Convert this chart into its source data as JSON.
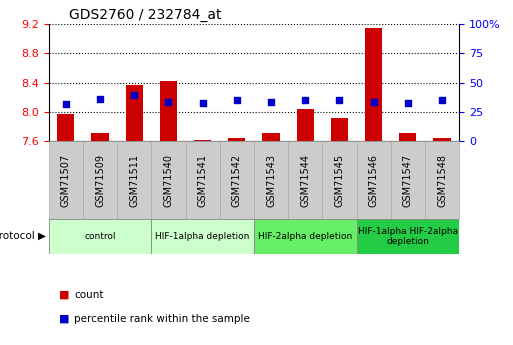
{
  "title": "GDS2760 / 232784_at",
  "samples": [
    "GSM71507",
    "GSM71509",
    "GSM71511",
    "GSM71540",
    "GSM71541",
    "GSM71542",
    "GSM71543",
    "GSM71544",
    "GSM71545",
    "GSM71546",
    "GSM71547",
    "GSM71548"
  ],
  "red_values": [
    7.97,
    7.72,
    8.37,
    8.43,
    7.62,
    7.65,
    7.72,
    8.04,
    7.92,
    9.15,
    7.72,
    7.65
  ],
  "blue_values_pct": [
    32,
    36,
    40,
    34,
    33,
    35,
    34,
    35,
    35,
    34,
    33,
    35
  ],
  "ylim_left": [
    7.6,
    9.2
  ],
  "ylim_right": [
    0,
    100
  ],
  "yticks_left": [
    7.6,
    8.0,
    8.4,
    8.8,
    9.2
  ],
  "yticks_right": [
    0,
    25,
    50,
    75,
    100
  ],
  "ytick_labels_right": [
    "0",
    "25",
    "50",
    "75",
    "100%"
  ],
  "groups": [
    {
      "label": "control",
      "start": 0,
      "end": 2,
      "color": "#ccffcc"
    },
    {
      "label": "HIF-1alpha depletion",
      "start": 3,
      "end": 5,
      "color": "#ccffcc"
    },
    {
      "label": "HIF-2alpha depletion",
      "start": 6,
      "end": 8,
      "color": "#66ee66"
    },
    {
      "label": "HIF-1alpha HIF-2alpha\ndepletion",
      "start": 9,
      "end": 11,
      "color": "#22cc44"
    }
  ],
  "bar_color": "#cc0000",
  "dot_color": "#0000cc",
  "bar_width": 0.5,
  "baseline": 7.6,
  "xtick_box_color": "#cccccc",
  "xtick_box_edge": "#aaaaaa",
  "grid_color": "#000000",
  "spine_color": "#000000"
}
